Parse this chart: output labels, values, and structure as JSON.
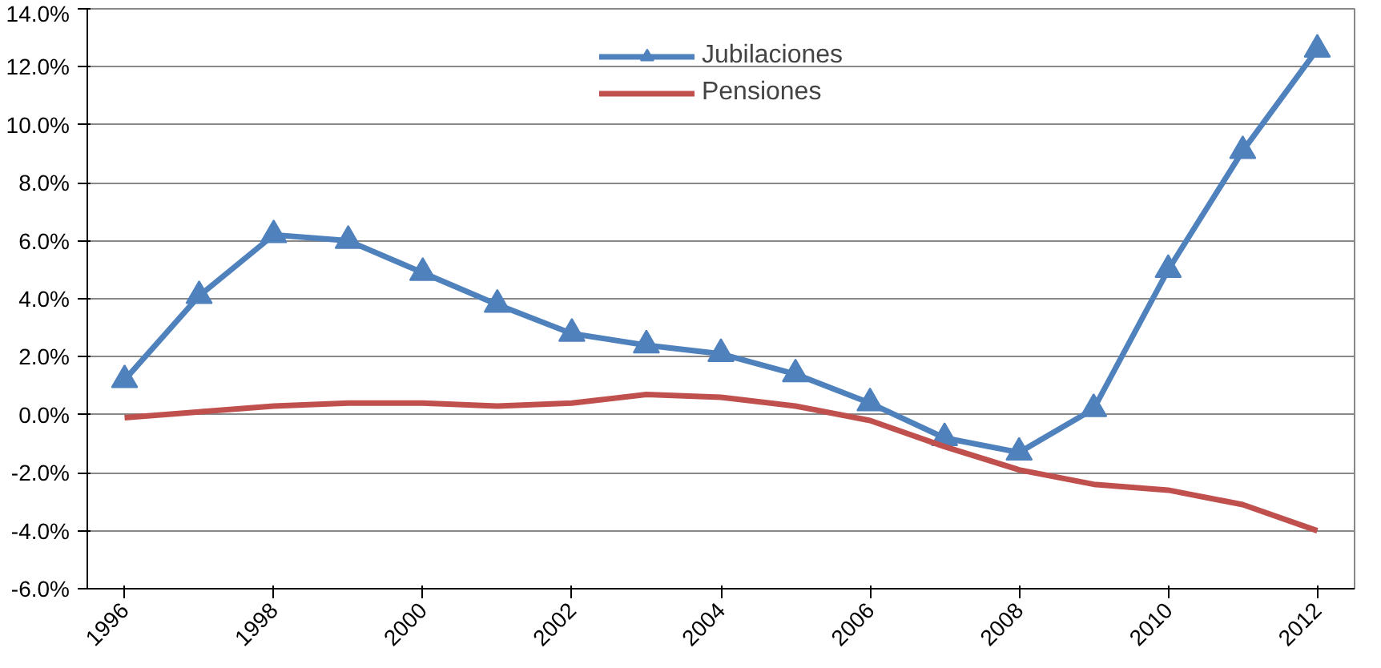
{
  "chart_data": {
    "type": "line",
    "x": [
      1996,
      1997,
      1998,
      1999,
      2000,
      2001,
      2002,
      2003,
      2004,
      2005,
      2006,
      2007,
      2008,
      2009,
      2010,
      2011,
      2012
    ],
    "series": [
      {
        "name": "Jubilaciones",
        "color": "#4f81bd",
        "marker": "triangle",
        "values": [
          1.2,
          4.1,
          6.2,
          6.0,
          4.9,
          3.8,
          2.8,
          2.4,
          2.1,
          1.4,
          0.4,
          -0.8,
          -1.3,
          0.2,
          5.0,
          9.1,
          12.6
        ]
      },
      {
        "name": "Pensiones",
        "color": "#c0504d",
        "marker": "none",
        "values": [
          -0.1,
          0.1,
          0.3,
          0.4,
          0.4,
          0.3,
          0.4,
          0.7,
          0.6,
          0.3,
          -0.2,
          -1.1,
          -1.9,
          -2.4,
          -2.6,
          -3.1,
          -4.0
        ]
      }
    ],
    "xlim": [
      1995.5,
      2012.5
    ],
    "xticks": [
      1996,
      1998,
      2000,
      2002,
      2004,
      2006,
      2008,
      2010,
      2012
    ],
    "ylim": [
      -6,
      14
    ],
    "yticks": [
      {
        "value": -6,
        "label": "-6.0%"
      },
      {
        "value": -4,
        "label": "-4.0%"
      },
      {
        "value": -2,
        "label": "-2.0%"
      },
      {
        "value": 0,
        "label": "0.0%"
      },
      {
        "value": 2,
        "label": "2.0%"
      },
      {
        "value": 4,
        "label": "4.0%"
      },
      {
        "value": 6,
        "label": "6.0%"
      },
      {
        "value": 8,
        "label": "8.0%"
      },
      {
        "value": 10,
        "label": "10.0%"
      },
      {
        "value": 12,
        "label": "12.0%"
      },
      {
        "value": 14,
        "label": "14.0%"
      }
    ],
    "grid": "y",
    "legend": "top",
    "line_style": "solid"
  }
}
